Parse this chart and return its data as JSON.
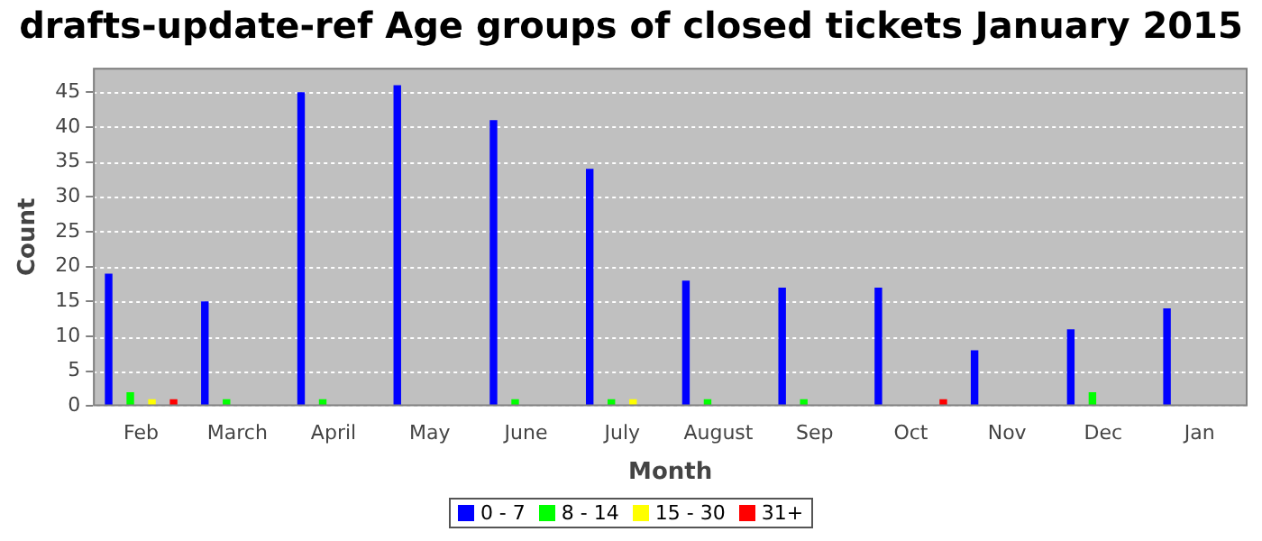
{
  "chart_data": {
    "type": "bar",
    "title": "drafts-update-ref Age groups of closed tickets January 2015",
    "xlabel": "Month",
    "ylabel": "Count",
    "categories": [
      "Feb",
      "March",
      "April",
      "May",
      "June",
      "July",
      "August",
      "Sep",
      "Oct",
      "Nov",
      "Dec",
      "Jan"
    ],
    "series": [
      {
        "name": "0 - 7",
        "color": "#0000ff",
        "values": [
          19,
          15,
          45,
          46,
          41,
          34,
          18,
          17,
          17,
          8,
          11,
          14
        ]
      },
      {
        "name": "8 - 14",
        "color": "#00ff00",
        "values": [
          2,
          1,
          1,
          0,
          1,
          1,
          1,
          1,
          0,
          0,
          2,
          0
        ]
      },
      {
        "name": "15 - 30",
        "color": "#ffff00",
        "values": [
          1,
          0,
          0,
          0,
          0,
          1,
          0,
          0,
          0,
          0,
          0,
          0
        ]
      },
      {
        "name": "31+",
        "color": "#ff0000",
        "values": [
          1,
          0,
          0,
          0,
          0,
          0,
          0,
          0,
          1,
          0,
          0,
          0
        ]
      }
    ],
    "ylim": [
      0,
      48.5
    ],
    "yticks": [
      0,
      5,
      10,
      15,
      20,
      25,
      30,
      35,
      40,
      45
    ],
    "grid": "y",
    "legend": "bottom"
  }
}
